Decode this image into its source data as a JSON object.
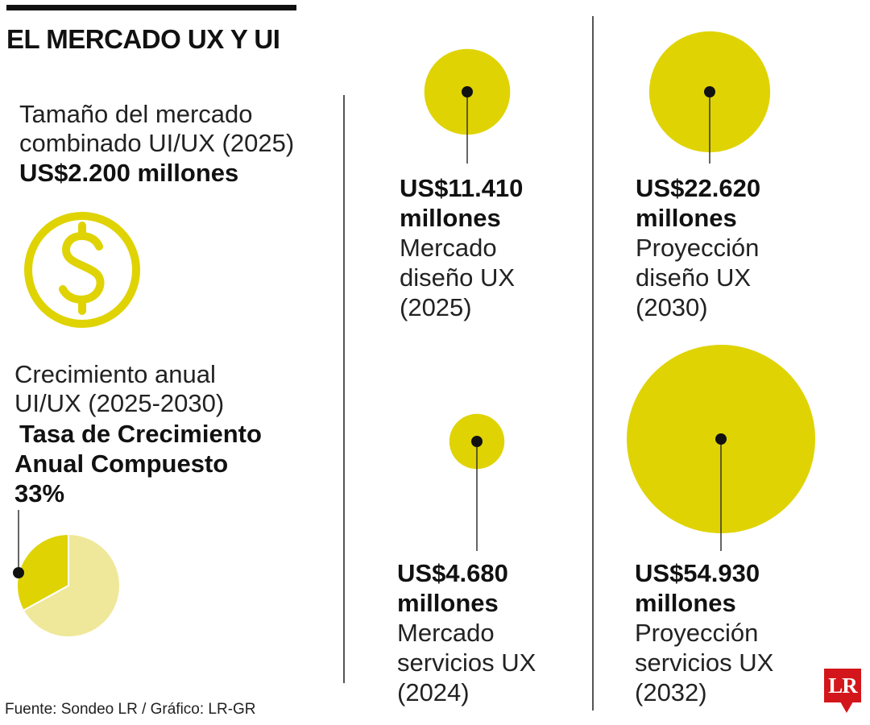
{
  "title": "EL MERCADO UX Y UI",
  "left": {
    "market_size": {
      "line1": "Tamaño del mercado",
      "line2": "combinado UI/UX (2025)",
      "value": "US$2.200 millones"
    },
    "dollar_icon": "dollar-circle-icon",
    "growth": {
      "line1": "Crecimiento anual",
      "line2": "UI/UX (2025-2030)",
      "bold1": "Tasa de Crecimiento",
      "bold2": "Anual Compuesto",
      "bold3": "33%"
    }
  },
  "colors": {
    "accent": "#dfd304",
    "accent_light": "#efe89a",
    "text": "#111111",
    "logo_red": "#d3161b"
  },
  "chart_data": [
    {
      "type": "pie",
      "values": [
        33,
        67
      ],
      "unit": "%"
    },
    {
      "type": "bubble",
      "unit": "US$ millones",
      "items": [
        {
          "value_line1": "US$11.410",
          "value_line2": "millones",
          "value": 11410,
          "label_line1": "Mercado",
          "label_line2": "diseño UX",
          "label_line3": "(2025)"
        },
        {
          "value_line1": "US$22.620",
          "value_line2": "millones",
          "value": 22620,
          "label_line1": "Proyección",
          "label_line2": "diseño UX",
          "label_line3": "(2030)"
        },
        {
          "value_line1": "US$4.680",
          "value_line2": "millones",
          "value": 4680,
          "label_line1": "Mercado",
          "label_line2": "servicios UX",
          "label_line3": "(2024)"
        },
        {
          "value_line1": "US$54.930",
          "value_line2": "millones",
          "value": 54930,
          "label_line1": "Proyección",
          "label_line2": "servicios UX",
          "label_line3": "(2032)"
        }
      ]
    }
  ],
  "source": "Fuente: Sondeo LR / Gráfico: LR-GR",
  "logo": "LR"
}
